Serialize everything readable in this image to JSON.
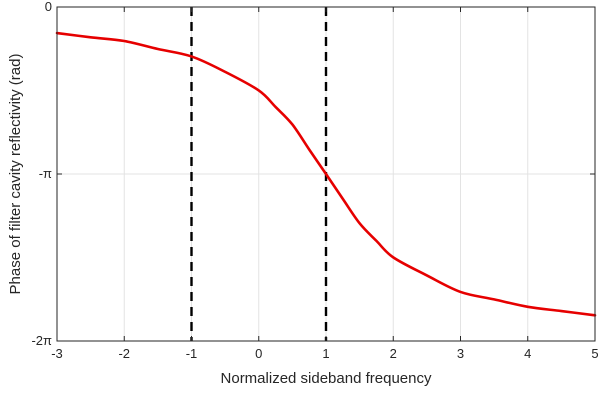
{
  "chart_data": {
    "type": "line",
    "title": "",
    "xlabel": "Normalized sideband frequency",
    "ylabel": "Phase of filter cavity reflectivity (rad)",
    "xlim": [
      -3,
      5
    ],
    "ylim": [
      -6.2832,
      0
    ],
    "xticks": [
      -3,
      -2,
      -1,
      0,
      1,
      2,
      3,
      4,
      5
    ],
    "xtick_labels": [
      "-3",
      "-2",
      "-1",
      "0",
      "1",
      "2",
      "3",
      "4",
      "5"
    ],
    "yticks": [
      0,
      -3.1416,
      -6.2832
    ],
    "ytick_labels": [
      "0",
      "-π",
      "-2π"
    ],
    "grid": true,
    "series": [
      {
        "color": "#e60000",
        "style": "solid",
        "x": [
          -3,
          -2.5,
          -2,
          -1.5,
          -1,
          -0.5,
          0,
          0.25,
          0.5,
          0.75,
          1,
          1.25,
          1.5,
          1.75,
          2,
          2.5,
          3,
          3.5,
          4,
          4.5,
          5
        ],
        "y": [
          -0.49,
          -0.57,
          -0.64,
          -0.79,
          -0.93,
          -1.22,
          -1.57,
          -1.88,
          -2.21,
          -2.68,
          -3.1416,
          -3.61,
          -4.07,
          -4.4,
          -4.71,
          -5.05,
          -5.36,
          -5.5,
          -5.64,
          -5.72,
          -5.8
        ]
      }
    ],
    "vlines": [
      {
        "x": -1,
        "color": "#000000",
        "style": "dashed"
      },
      {
        "x": 1,
        "color": "#000000",
        "style": "dashed"
      }
    ]
  }
}
